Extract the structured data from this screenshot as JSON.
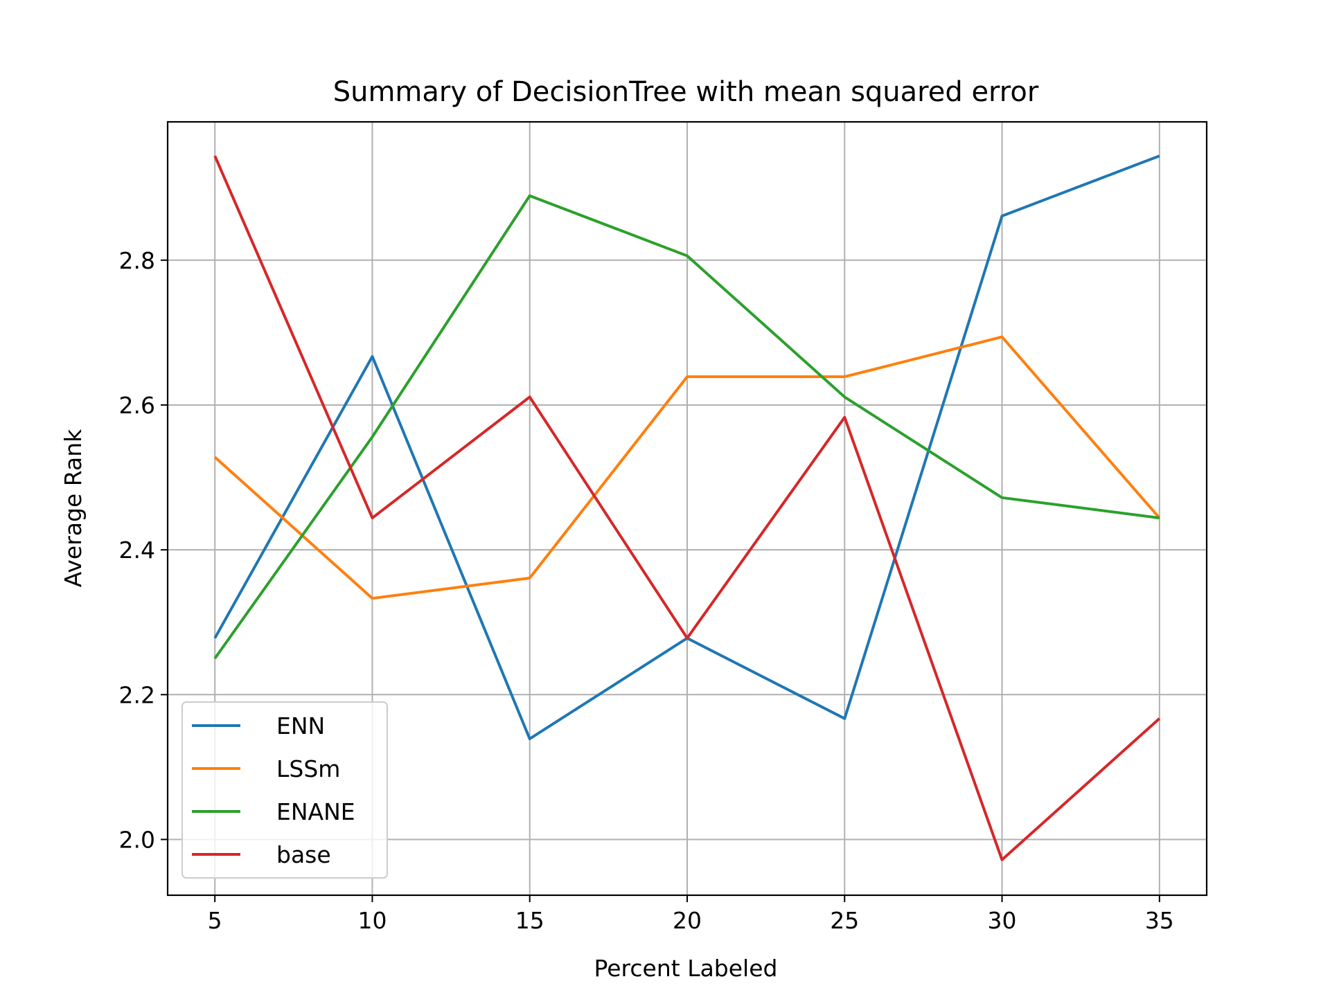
{
  "chart_data": {
    "type": "line",
    "title": "Summary of DecisionTree with mean squared error",
    "xlabel": "Percent Labeled",
    "ylabel": "Average Rank",
    "x": [
      5,
      10,
      15,
      20,
      25,
      30,
      35
    ],
    "xlim": [
      3.5,
      36.5
    ],
    "ylim": [
      1.923,
      2.991
    ],
    "x_ticks": [
      5,
      10,
      15,
      20,
      25,
      30,
      35
    ],
    "y_ticks": [
      2.0,
      2.2,
      2.4,
      2.6,
      2.8
    ],
    "y_tick_labels": [
      "2.0",
      "2.2",
      "2.4",
      "2.6",
      "2.8"
    ],
    "grid": true,
    "legend_position": "lower-left",
    "series": [
      {
        "name": "ENN",
        "color": "#1f77b4",
        "values": [
          2.278,
          2.667,
          2.139,
          2.278,
          2.167,
          2.861,
          2.944
        ]
      },
      {
        "name": "LSSm",
        "color": "#ff7f0e",
        "values": [
          2.528,
          2.333,
          2.361,
          2.639,
          2.639,
          2.694,
          2.444
        ]
      },
      {
        "name": "ENANE",
        "color": "#2ca02c",
        "values": [
          2.25,
          2.556,
          2.889,
          2.806,
          2.611,
          2.472,
          2.444
        ]
      },
      {
        "name": "base",
        "color": "#d62728",
        "values": [
          2.944,
          2.444,
          2.611,
          2.278,
          2.583,
          1.972,
          2.167
        ]
      }
    ]
  }
}
